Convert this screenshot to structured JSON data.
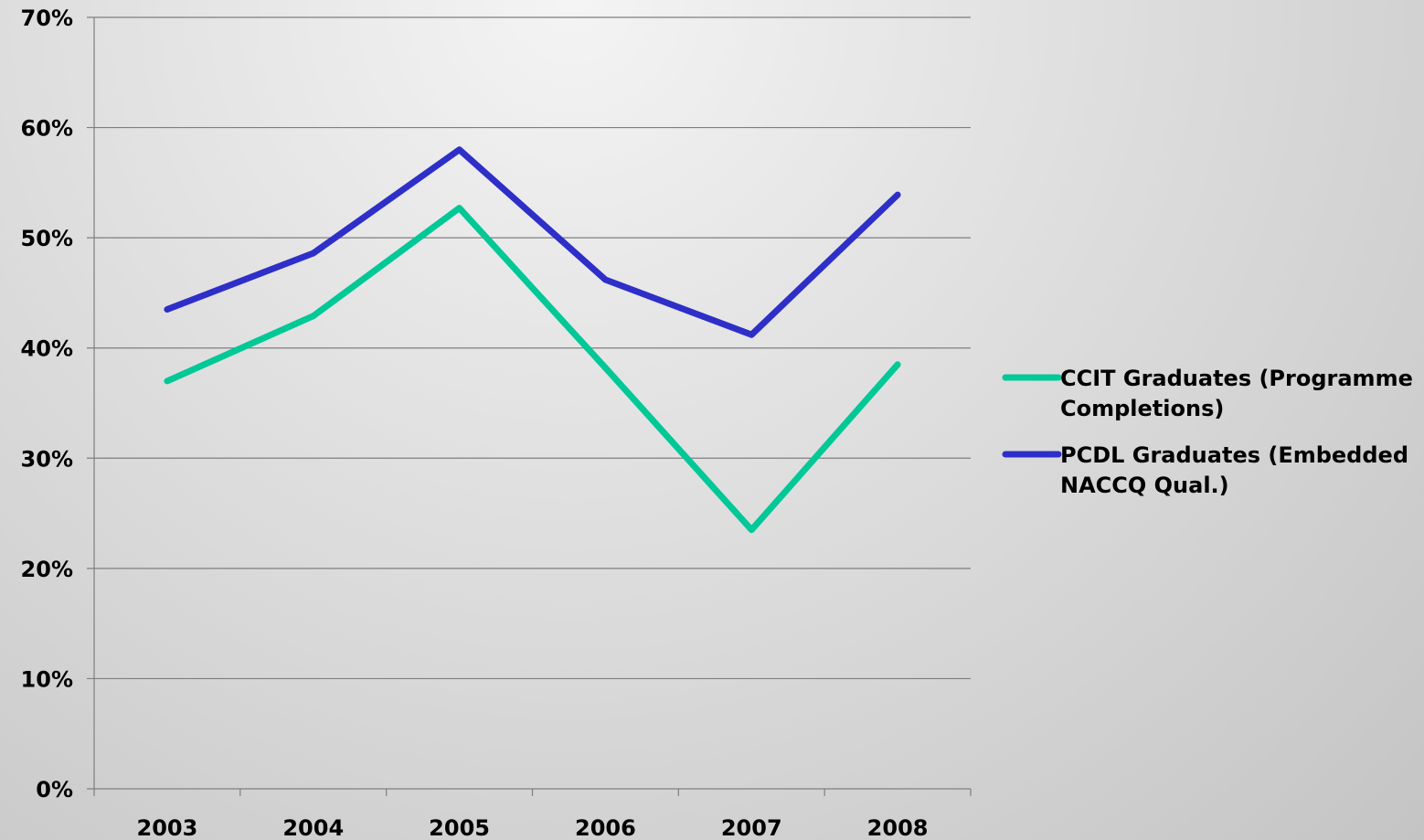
{
  "chart_data": {
    "type": "line",
    "categories": [
      "2003",
      "2004",
      "2005",
      "2006",
      "2007",
      "2008"
    ],
    "series": [
      {
        "name": "CCIT Graduates (Programme Completions)",
        "name_lines": [
          "CCIT Graduates (Programme",
          "Completions)"
        ],
        "color": "#00c896",
        "values": [
          0.37,
          0.429,
          0.527,
          0.382,
          0.235,
          0.385
        ]
      },
      {
        "name": "PCDL Graduates (Embedded NACCQ Qual.)",
        "name_lines": [
          "PCDL Graduates (Embedded",
          "NACCQ Qual.)"
        ],
        "color": "#2e2ec8",
        "values": [
          0.435,
          0.486,
          0.58,
          0.462,
          0.412,
          0.539
        ]
      }
    ],
    "ylim": [
      0,
      0.7
    ],
    "yticks": [
      {
        "value": 0.0,
        "label": "0%"
      },
      {
        "value": 0.1,
        "label": "10%"
      },
      {
        "value": 0.2,
        "label": "20%"
      },
      {
        "value": 0.3,
        "label": "30%"
      },
      {
        "value": 0.4,
        "label": "40%"
      },
      {
        "value": 0.5,
        "label": "50%"
      },
      {
        "value": 0.6,
        "label": "60%"
      },
      {
        "value": 0.7,
        "label": "70%"
      }
    ],
    "title": "",
    "xlabel": "",
    "ylabel": "",
    "grid": "horizontal",
    "legend_position": "right"
  }
}
